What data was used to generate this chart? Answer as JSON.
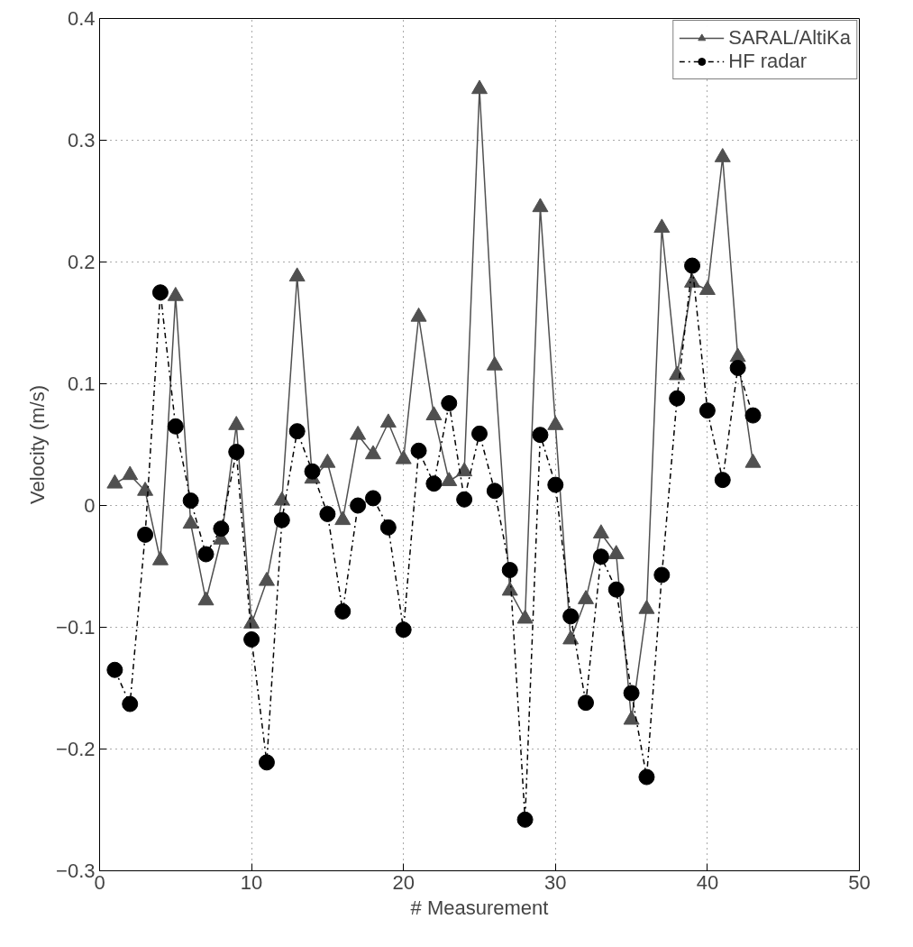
{
  "chart_data": {
    "type": "line",
    "xlabel": "# Measurement",
    "ylabel": "Velocity (m/s)",
    "x": [
      1,
      2,
      3,
      4,
      5,
      6,
      7,
      8,
      9,
      10,
      11,
      12,
      13,
      14,
      15,
      16,
      17,
      18,
      19,
      20,
      21,
      22,
      23,
      24,
      25,
      26,
      27,
      28,
      29,
      30,
      31,
      32,
      33,
      34,
      35,
      36,
      37,
      38,
      39,
      40,
      41,
      42,
      43
    ],
    "series": [
      {
        "name": "SARAL/AltiKa",
        "color": "#505050",
        "marker": "triangle",
        "line_style": "solid",
        "values": [
          0.018,
          0.025,
          0.012,
          -0.045,
          0.172,
          -0.015,
          -0.078,
          -0.028,
          0.066,
          -0.097,
          -0.062,
          0.004,
          0.188,
          0.022,
          0.035,
          -0.012,
          0.058,
          0.042,
          0.068,
          0.038,
          0.155,
          0.074,
          0.02,
          0.028,
          0.342,
          0.115,
          -0.07,
          -0.093,
          0.245,
          0.066,
          -0.11,
          -0.077,
          -0.023,
          -0.04,
          -0.176,
          -0.085,
          0.228,
          0.107,
          0.183,
          0.177,
          0.286,
          0.122,
          0.035
        ]
      },
      {
        "name": "HF radar",
        "color": "#000000",
        "marker": "circle",
        "line_style": "dashdot",
        "values": [
          -0.135,
          -0.163,
          -0.024,
          0.175,
          0.065,
          0.004,
          -0.04,
          -0.019,
          0.044,
          -0.11,
          -0.211,
          -0.012,
          0.061,
          0.028,
          -0.007,
          -0.087,
          0.0,
          0.006,
          -0.018,
          -0.102,
          0.045,
          0.018,
          0.084,
          0.005,
          0.059,
          0.012,
          -0.053,
          -0.258,
          0.058,
          0.017,
          -0.091,
          -0.162,
          -0.042,
          -0.069,
          -0.154,
          -0.223,
          -0.057,
          0.088,
          0.197,
          0.078,
          0.021,
          0.113,
          0.074
        ]
      }
    ],
    "xlim": [
      0,
      50
    ],
    "xticks": [
      0,
      10,
      20,
      30,
      40,
      50
    ],
    "ylim": [
      -0.3,
      0.4
    ],
    "yticks": [
      {
        "value": -0.3,
        "label": "−0.3"
      },
      {
        "value": -0.2,
        "label": "−0.2"
      },
      {
        "value": -0.1,
        "label": "−0.1"
      },
      0,
      0.1,
      0.2,
      0.3,
      0.4
    ],
    "grid": true,
    "legend": "top right"
  }
}
